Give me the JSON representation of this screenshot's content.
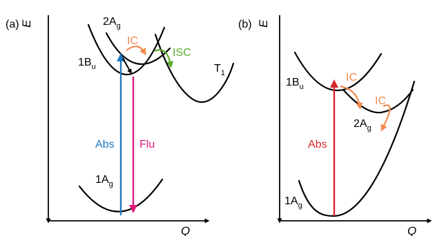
{
  "panel_a": {
    "label": "(a)",
    "y_axis": "E",
    "x_axis": "Q",
    "states": {
      "s2": {
        "main": "2A",
        "sub": "g"
      },
      "s1": {
        "main": "1B",
        "sub": "u"
      },
      "t1": {
        "main": "T",
        "sub": "1"
      },
      "s0": {
        "main": "1A",
        "sub": "g"
      }
    },
    "processes": {
      "ic": "IC",
      "isc": "ISC",
      "abs": "Abs",
      "flu": "Flu"
    }
  },
  "panel_b": {
    "label": "(b)",
    "y_axis": "E",
    "x_axis": "Q",
    "states": {
      "s1": {
        "main": "1B",
        "sub": "u"
      },
      "s2": {
        "main": "2A",
        "sub": "g"
      },
      "s0": {
        "main": "1A",
        "sub": "g"
      }
    },
    "processes": {
      "ic1": "IC",
      "ic2": "IC",
      "abs": "Abs"
    }
  },
  "colors": {
    "abs_a": "#1f78c1",
    "flu": "#e0197d",
    "ic": "#f28a4f",
    "isc": "#5aac2b",
    "abs_b": "#d7262b"
  }
}
